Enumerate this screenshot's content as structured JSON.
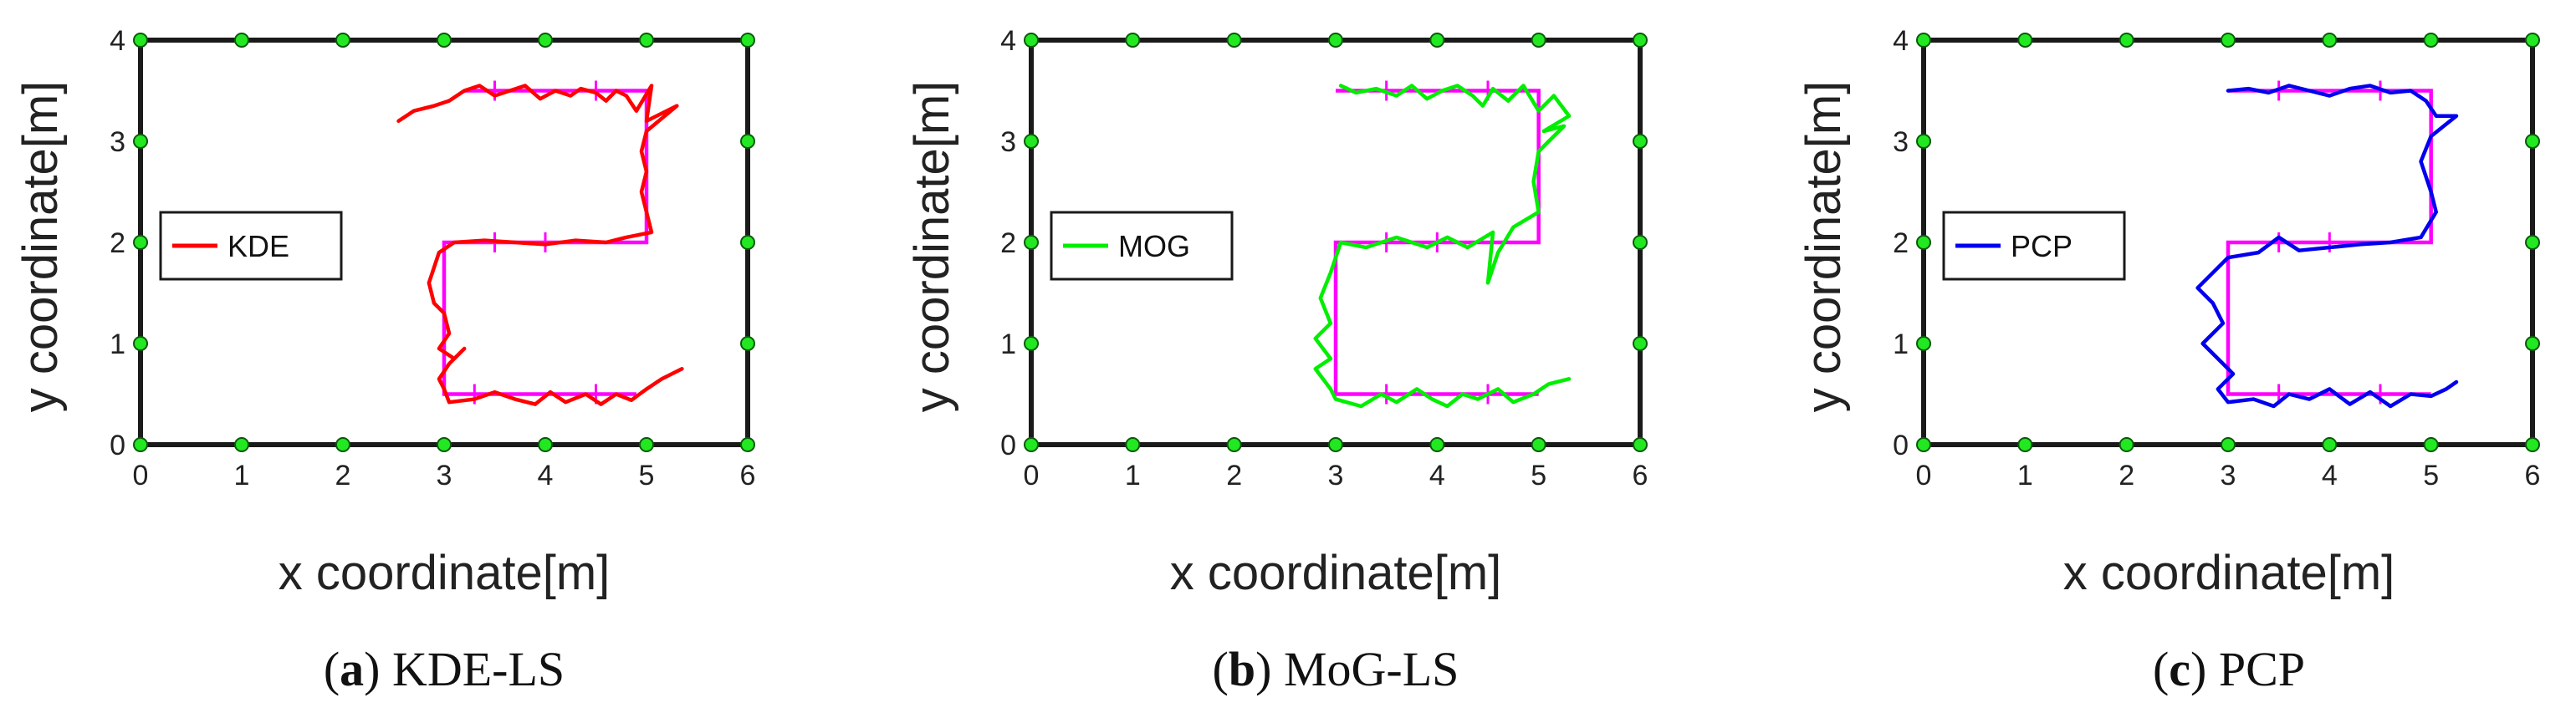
{
  "chart_data": [
    {
      "type": "line",
      "caption_letter": "a",
      "caption_text": "KDE-LS",
      "xlabel": "x coordinate[m]",
      "ylabel": "y coordinate[m]",
      "xlim": [
        0,
        6
      ],
      "ylim": [
        0,
        4
      ],
      "xticks": [
        "0",
        "1",
        "2",
        "3",
        "4",
        "5",
        "6"
      ],
      "yticks": [
        "0",
        "1",
        "2",
        "3",
        "4"
      ],
      "grid": false,
      "legend_position": "left",
      "sensor_points": [
        [
          0,
          0
        ],
        [
          1,
          0
        ],
        [
          2,
          0
        ],
        [
          3,
          0
        ],
        [
          4,
          0
        ],
        [
          5,
          0
        ],
        [
          6,
          0
        ],
        [
          0,
          1
        ],
        [
          0,
          2
        ],
        [
          0,
          3
        ],
        [
          0,
          4
        ],
        [
          1,
          4
        ],
        [
          2,
          4
        ],
        [
          3,
          4
        ],
        [
          4,
          4
        ],
        [
          5,
          4
        ],
        [
          6,
          4
        ],
        [
          6,
          1
        ],
        [
          6,
          2
        ],
        [
          6,
          3
        ]
      ],
      "ground_truth": {
        "color": "#ff00ff",
        "points": [
          [
            3.2,
            3.5
          ],
          [
            5.0,
            3.5
          ],
          [
            5.0,
            2.0
          ],
          [
            3.0,
            2.0
          ],
          [
            3.0,
            0.5
          ],
          [
            4.9,
            0.5
          ]
        ],
        "ticks": [
          [
            3.5,
            3.5
          ],
          [
            4.5,
            3.5
          ],
          [
            4.0,
            2.0
          ],
          [
            3.5,
            2.0
          ],
          [
            3.3,
            0.5
          ],
          [
            4.5,
            0.5
          ]
        ]
      },
      "series": [
        {
          "name": "KDE",
          "color": "#ff0000",
          "values": [
            [
              2.55,
              3.2
            ],
            [
              2.7,
              3.3
            ],
            [
              2.9,
              3.35
            ],
            [
              3.05,
              3.4
            ],
            [
              3.2,
              3.5
            ],
            [
              3.35,
              3.55
            ],
            [
              3.5,
              3.45
            ],
            [
              3.65,
              3.5
            ],
            [
              3.8,
              3.55
            ],
            [
              3.95,
              3.42
            ],
            [
              4.1,
              3.5
            ],
            [
              4.25,
              3.45
            ],
            [
              4.35,
              3.52
            ],
            [
              4.5,
              3.48
            ],
            [
              4.6,
              3.4
            ],
            [
              4.7,
              3.5
            ],
            [
              4.8,
              3.45
            ],
            [
              4.9,
              3.3
            ],
            [
              5.05,
              3.55
            ],
            [
              5.0,
              3.2
            ],
            [
              5.3,
              3.35
            ],
            [
              5.0,
              3.1
            ],
            [
              4.95,
              2.9
            ],
            [
              5.0,
              2.7
            ],
            [
              4.95,
              2.5
            ],
            [
              5.0,
              2.3
            ],
            [
              5.05,
              2.1
            ],
            [
              4.8,
              2.05
            ],
            [
              4.6,
              2.0
            ],
            [
              4.3,
              2.02
            ],
            [
              4.0,
              1.98
            ],
            [
              3.7,
              2.0
            ],
            [
              3.4,
              2.02
            ],
            [
              3.1,
              2.0
            ],
            [
              2.95,
              1.9
            ],
            [
              2.85,
              1.6
            ],
            [
              2.9,
              1.4
            ],
            [
              3.0,
              1.3
            ],
            [
              3.05,
              1.1
            ],
            [
              2.95,
              0.95
            ],
            [
              3.1,
              0.85
            ],
            [
              3.2,
              0.95
            ],
            [
              3.05,
              0.8
            ],
            [
              2.95,
              0.65
            ],
            [
              3.0,
              0.55
            ],
            [
              3.05,
              0.42
            ],
            [
              3.3,
              0.45
            ],
            [
              3.5,
              0.52
            ],
            [
              3.7,
              0.45
            ],
            [
              3.9,
              0.4
            ],
            [
              4.05,
              0.52
            ],
            [
              4.2,
              0.42
            ],
            [
              4.4,
              0.5
            ],
            [
              4.55,
              0.4
            ],
            [
              4.7,
              0.5
            ],
            [
              4.85,
              0.44
            ],
            [
              5.0,
              0.55
            ],
            [
              5.15,
              0.65
            ],
            [
              5.35,
              0.75
            ]
          ]
        }
      ]
    },
    {
      "type": "line",
      "caption_letter": "b",
      "caption_text": "MoG-LS",
      "xlabel": "x coordinate[m]",
      "ylabel": "y coordinate[m]",
      "xlim": [
        0,
        6
      ],
      "ylim": [
        0,
        4
      ],
      "xticks": [
        "0",
        "1",
        "2",
        "3",
        "4",
        "5",
        "6"
      ],
      "yticks": [
        "0",
        "1",
        "2",
        "3",
        "4"
      ],
      "grid": false,
      "legend_position": "left",
      "sensor_points": [
        [
          0,
          0
        ],
        [
          1,
          0
        ],
        [
          2,
          0
        ],
        [
          3,
          0
        ],
        [
          4,
          0
        ],
        [
          5,
          0
        ],
        [
          6,
          0
        ],
        [
          0,
          1
        ],
        [
          0,
          2
        ],
        [
          0,
          3
        ],
        [
          0,
          4
        ],
        [
          1,
          4
        ],
        [
          2,
          4
        ],
        [
          3,
          4
        ],
        [
          4,
          4
        ],
        [
          5,
          4
        ],
        [
          6,
          4
        ],
        [
          6,
          1
        ],
        [
          6,
          2
        ],
        [
          6,
          3
        ]
      ],
      "ground_truth": {
        "color": "#ff00ff",
        "points": [
          [
            3.0,
            3.5
          ],
          [
            5.0,
            3.5
          ],
          [
            5.0,
            2.0
          ],
          [
            3.0,
            2.0
          ],
          [
            3.0,
            0.5
          ],
          [
            5.0,
            0.5
          ]
        ],
        "ticks": [
          [
            3.5,
            3.5
          ],
          [
            4.5,
            3.5
          ],
          [
            4.0,
            2.0
          ],
          [
            3.5,
            2.0
          ],
          [
            3.5,
            0.5
          ],
          [
            4.5,
            0.5
          ]
        ]
      },
      "series": [
        {
          "name": "MOG",
          "color": "#00ee00",
          "values": [
            [
              3.05,
              3.55
            ],
            [
              3.2,
              3.48
            ],
            [
              3.4,
              3.52
            ],
            [
              3.6,
              3.45
            ],
            [
              3.75,
              3.55
            ],
            [
              3.9,
              3.42
            ],
            [
              4.05,
              3.5
            ],
            [
              4.2,
              3.55
            ],
            [
              4.35,
              3.45
            ],
            [
              4.45,
              3.35
            ],
            [
              4.55,
              3.52
            ],
            [
              4.7,
              3.4
            ],
            [
              4.85,
              3.55
            ],
            [
              5.0,
              3.3
            ],
            [
              5.15,
              3.45
            ],
            [
              5.3,
              3.25
            ],
            [
              5.05,
              3.1
            ],
            [
              5.25,
              3.15
            ],
            [
              5.0,
              2.9
            ],
            [
              4.95,
              2.6
            ],
            [
              5.0,
              2.3
            ],
            [
              4.75,
              2.15
            ],
            [
              4.6,
              1.9
            ],
            [
              4.5,
              1.6
            ],
            [
              4.55,
              2.1
            ],
            [
              4.3,
              1.95
            ],
            [
              4.1,
              2.05
            ],
            [
              3.9,
              1.95
            ],
            [
              3.6,
              2.05
            ],
            [
              3.3,
              1.95
            ],
            [
              3.05,
              2.0
            ],
            [
              2.95,
              1.7
            ],
            [
              2.85,
              1.45
            ],
            [
              2.95,
              1.2
            ],
            [
              2.8,
              1.05
            ],
            [
              2.95,
              0.85
            ],
            [
              2.8,
              0.75
            ],
            [
              2.95,
              0.55
            ],
            [
              3.0,
              0.45
            ],
            [
              3.25,
              0.38
            ],
            [
              3.45,
              0.5
            ],
            [
              3.6,
              0.42
            ],
            [
              3.8,
              0.55
            ],
            [
              3.95,
              0.45
            ],
            [
              4.1,
              0.38
            ],
            [
              4.25,
              0.5
            ],
            [
              4.4,
              0.45
            ],
            [
              4.6,
              0.55
            ],
            [
              4.75,
              0.42
            ],
            [
              4.95,
              0.5
            ],
            [
              5.1,
              0.6
            ],
            [
              5.3,
              0.65
            ]
          ]
        }
      ]
    },
    {
      "type": "line",
      "caption_letter": "c",
      "caption_text": "PCP",
      "xlabel": "x coordinate[m]",
      "ylabel": "y coordinate[m]",
      "xlim": [
        0,
        6
      ],
      "ylim": [
        0,
        4
      ],
      "xticks": [
        "0",
        "1",
        "2",
        "3",
        "4",
        "5",
        "6"
      ],
      "yticks": [
        "0",
        "1",
        "2",
        "3",
        "4"
      ],
      "grid": false,
      "legend_position": "left",
      "sensor_points": [
        [
          0,
          0
        ],
        [
          1,
          0
        ],
        [
          2,
          0
        ],
        [
          3,
          0
        ],
        [
          4,
          0
        ],
        [
          5,
          0
        ],
        [
          6,
          0
        ],
        [
          0,
          1
        ],
        [
          0,
          2
        ],
        [
          0,
          3
        ],
        [
          0,
          4
        ],
        [
          1,
          4
        ],
        [
          2,
          4
        ],
        [
          3,
          4
        ],
        [
          4,
          4
        ],
        [
          5,
          4
        ],
        [
          6,
          4
        ],
        [
          6,
          1
        ],
        [
          6,
          2
        ],
        [
          6,
          3
        ]
      ],
      "ground_truth": {
        "color": "#ff00ff",
        "points": [
          [
            3.0,
            3.5
          ],
          [
            5.0,
            3.5
          ],
          [
            5.0,
            2.0
          ],
          [
            3.0,
            2.0
          ],
          [
            3.0,
            0.5
          ],
          [
            5.0,
            0.5
          ]
        ],
        "ticks": [
          [
            3.5,
            3.5
          ],
          [
            4.5,
            3.5
          ],
          [
            4.0,
            2.0
          ],
          [
            3.5,
            2.0
          ],
          [
            3.5,
            0.5
          ],
          [
            4.5,
            0.5
          ]
        ]
      },
      "series": [
        {
          "name": "PCP",
          "color": "#0000ee",
          "values": [
            [
              3.0,
              3.5
            ],
            [
              3.2,
              3.52
            ],
            [
              3.4,
              3.48
            ],
            [
              3.6,
              3.55
            ],
            [
              3.8,
              3.5
            ],
            [
              4.0,
              3.45
            ],
            [
              4.2,
              3.52
            ],
            [
              4.4,
              3.55
            ],
            [
              4.6,
              3.48
            ],
            [
              4.8,
              3.5
            ],
            [
              4.95,
              3.4
            ],
            [
              5.05,
              3.25
            ],
            [
              5.25,
              3.25
            ],
            [
              5.0,
              3.05
            ],
            [
              4.9,
              2.8
            ],
            [
              5.0,
              2.5
            ],
            [
              5.05,
              2.3
            ],
            [
              4.9,
              2.05
            ],
            [
              4.6,
              2.0
            ],
            [
              4.3,
              1.98
            ],
            [
              4.0,
              1.95
            ],
            [
              3.7,
              1.92
            ],
            [
              3.5,
              2.05
            ],
            [
              3.3,
              1.9
            ],
            [
              3.0,
              1.85
            ],
            [
              2.85,
              1.7
            ],
            [
              2.7,
              1.55
            ],
            [
              2.85,
              1.4
            ],
            [
              2.95,
              1.2
            ],
            [
              2.75,
              1.0
            ],
            [
              2.9,
              0.85
            ],
            [
              3.05,
              0.7
            ],
            [
              2.9,
              0.55
            ],
            [
              3.0,
              0.42
            ],
            [
              3.25,
              0.45
            ],
            [
              3.45,
              0.38
            ],
            [
              3.6,
              0.5
            ],
            [
              3.8,
              0.45
            ],
            [
              4.0,
              0.55
            ],
            [
              4.2,
              0.4
            ],
            [
              4.4,
              0.52
            ],
            [
              4.6,
              0.38
            ],
            [
              4.8,
              0.5
            ],
            [
              5.0,
              0.48
            ],
            [
              5.15,
              0.55
            ],
            [
              5.25,
              0.62
            ]
          ]
        }
      ]
    }
  ]
}
